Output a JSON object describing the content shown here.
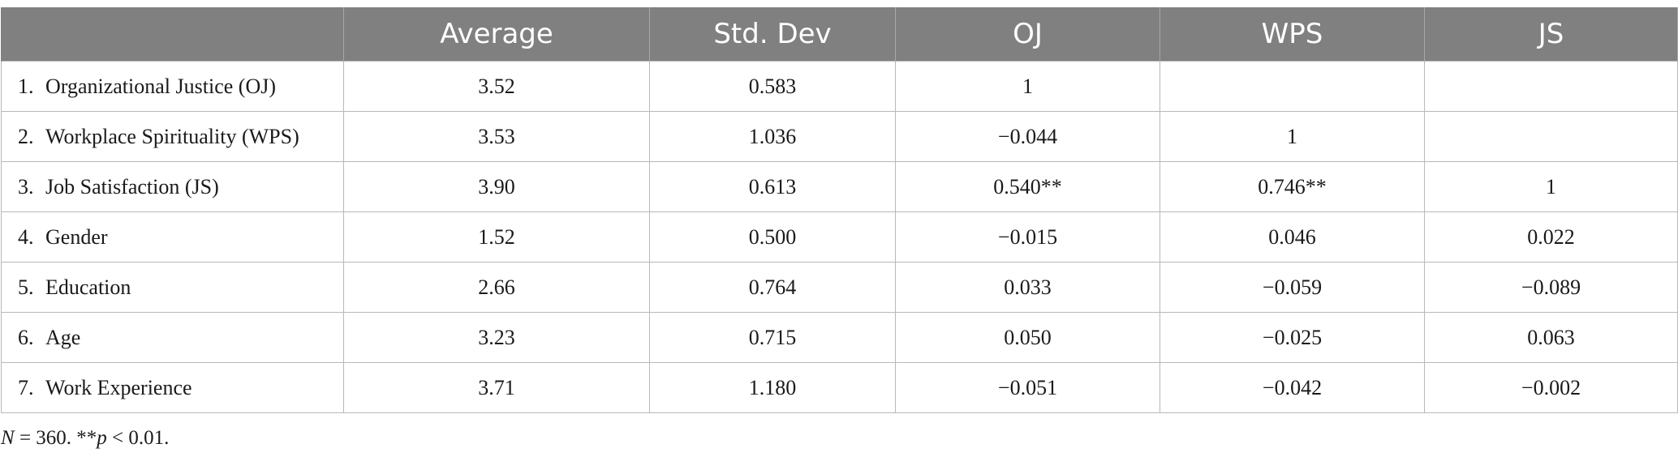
{
  "table": {
    "columns": [
      "",
      "Average",
      "Std. Dev",
      "OJ",
      "WPS",
      "JS"
    ],
    "rows": [
      {
        "num": "1.",
        "label": "Organizational Justice (OJ)",
        "cells": [
          "3.52",
          "0.583",
          "1",
          "",
          ""
        ]
      },
      {
        "num": "2.",
        "label": "Workplace Spirituality (WPS)",
        "cells": [
          "3.53",
          "1.036",
          "−0.044",
          "1",
          ""
        ]
      },
      {
        "num": "3.",
        "label": "Job Satisfaction (JS)",
        "cells": [
          "3.90",
          "0.613",
          "0.540**",
          "0.746**",
          "1"
        ]
      },
      {
        "num": "4.",
        "label": "Gender",
        "cells": [
          "1.52",
          "0.500",
          "−0.015",
          "0.046",
          "0.022"
        ]
      },
      {
        "num": "5.",
        "label": "Education",
        "cells": [
          "2.66",
          "0.764",
          "0.033",
          "−0.059",
          "−0.089"
        ]
      },
      {
        "num": "6.",
        "label": "Age",
        "cells": [
          "3.23",
          "0.715",
          "0.050",
          "−0.025",
          "0.063"
        ]
      },
      {
        "num": "7.",
        "label": "Work Experience",
        "cells": [
          "3.71",
          "1.180",
          "−0.051",
          "−0.042",
          "−0.002"
        ]
      }
    ]
  },
  "note": {
    "n_italic": "N",
    "n_text": " = 360. **",
    "p_italic": "p",
    "p_text": " < 0.01."
  }
}
